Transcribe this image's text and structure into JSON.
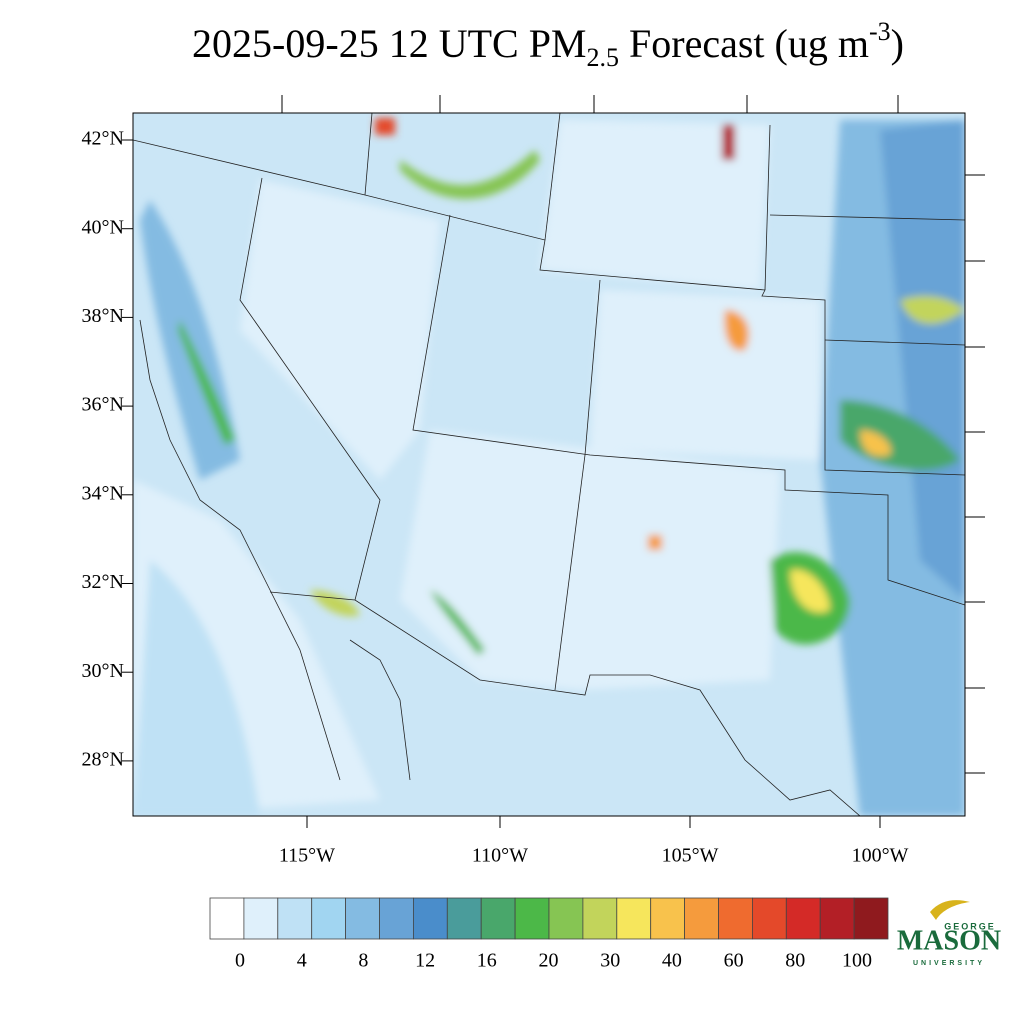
{
  "title": {
    "main": "2025-09-25 12 UTC PM",
    "sub": "2.5",
    "rest": " Forecast (ug m",
    "sup": "-3",
    "end": ")"
  },
  "map": {
    "lat_labels": [
      "42°N",
      "40°N",
      "38°N",
      "36°N",
      "34°N",
      "32°N",
      "30°N",
      "28°N"
    ],
    "lon_labels": [
      "115°W",
      "110°W",
      "105°W",
      "100°W"
    ]
  },
  "colorbar": {
    "colors": [
      "#ffffff",
      "#dff0fb",
      "#bfe1f5",
      "#a1d5f1",
      "#84bbe2",
      "#68a3d6",
      "#4a8dcb",
      "#4a9c9b",
      "#49a76b",
      "#4cb848",
      "#86c553",
      "#c2d45b",
      "#f6e65c",
      "#f8c24c",
      "#f59b3d",
      "#ef6b2f",
      "#e4492a",
      "#d42a27",
      "#b31f26",
      "#8f1a1e"
    ],
    "labels": [
      0,
      4,
      8,
      12,
      16,
      20,
      30,
      40,
      60,
      80,
      100
    ]
  },
  "logo": {
    "top": "GEORGE",
    "main": "MASON",
    "bottom": "UNIVERSITY"
  }
}
